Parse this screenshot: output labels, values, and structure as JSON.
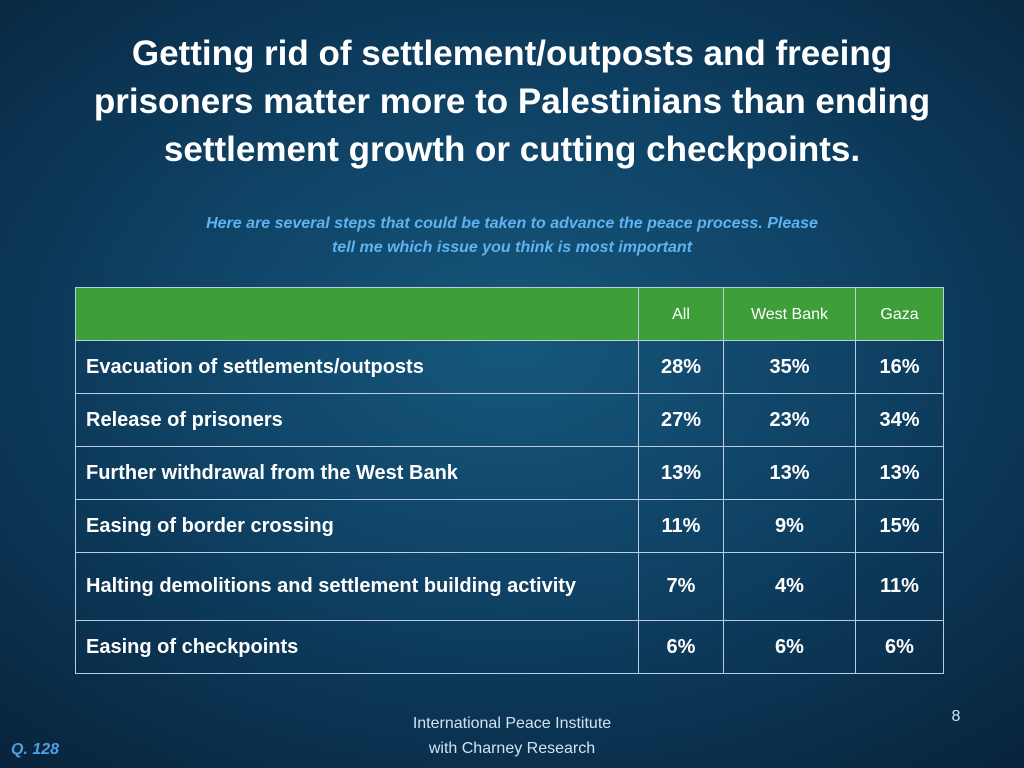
{
  "slide": {
    "title_line1": "Getting rid of settlement/outposts and freeing",
    "title_line2": "prisoners matter more to Palestinians than ending",
    "title_line3": "settlement growth or cutting checkpoints.",
    "subtitle_line1": "Here are several steps that could be taken to advance the peace process.  Please",
    "subtitle_line2": "tell me which issue you think is most important",
    "footer_line1": "International Peace Institute",
    "footer_line2": "with Charney Research",
    "page_number": "8",
    "question_ref": "Q. 128"
  },
  "colors": {
    "header_green": "#3d9e3a",
    "subtitle_blue": "#5fb3f0",
    "background": "#0f4265"
  },
  "chart_data": {
    "type": "table",
    "columns": [
      "",
      "All",
      "West Bank",
      "Gaza"
    ],
    "rows": [
      {
        "label": "Evacuation of settlements/outposts",
        "values": [
          "28%",
          "35%",
          "16%"
        ]
      },
      {
        "label": "Release of prisoners",
        "values": [
          "27%",
          "23%",
          "34%"
        ]
      },
      {
        "label": "Further withdrawal from the West Bank",
        "values": [
          "13%",
          "13%",
          "13%"
        ]
      },
      {
        "label": "Easing of border crossing",
        "values": [
          "11%",
          "9%",
          "15%"
        ]
      },
      {
        "label": "Halting demolitions and settlement building activity",
        "values": [
          "7%",
          "4%",
          "11%"
        ]
      },
      {
        "label": "Easing of checkpoints",
        "values": [
          "6%",
          "6%",
          "6%"
        ]
      }
    ]
  }
}
